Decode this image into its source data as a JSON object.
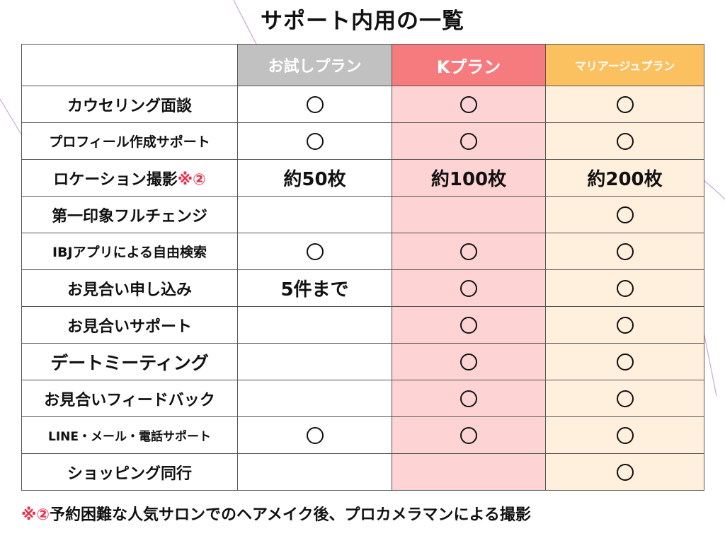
{
  "title": "サポート内用の一覧",
  "plans": [
    {
      "label": "お試しプラン"
    },
    {
      "label": "Kプラン"
    },
    {
      "label": "マリアージュプラン"
    }
  ],
  "circle": "○",
  "rows": [
    {
      "label": "カウセリング面談",
      "values": [
        "○",
        "○",
        "○"
      ]
    },
    {
      "label": "プロフィール作成サポート",
      "values": [
        "○",
        "○",
        "○"
      ]
    },
    {
      "label": "ロケーション撮影",
      "label_mark": "※②",
      "values": [
        "約50枚",
        "約100枚",
        "約200枚"
      ]
    },
    {
      "label": "第一印象フルチェンジ",
      "values": [
        "",
        "",
        "○"
      ]
    },
    {
      "label": "IBJアプリによる自由検索",
      "values": [
        "○",
        "○",
        "○"
      ]
    },
    {
      "label": "お見合い申し込み",
      "values": [
        "5件まで",
        "○",
        "○"
      ]
    },
    {
      "label": "お見合いサポート",
      "values": [
        "",
        "○",
        "○"
      ]
    },
    {
      "label": "デートミーティング",
      "values": [
        "",
        "○",
        "○"
      ]
    },
    {
      "label": "お見合いフィードバック",
      "values": [
        "",
        "○",
        "○"
      ]
    },
    {
      "label": "LINE・メール・電話サポート",
      "values": [
        "○",
        "○",
        "○"
      ]
    },
    {
      "label": "ショッピング同行",
      "values": [
        "",
        "",
        "○"
      ]
    }
  ],
  "footnote": {
    "mark": "※②",
    "text": "予約困難な人気サロンでのヘアメイク後、プロカメラマンによる撮影"
  },
  "colors": {
    "trial_header": "#c1c1c1",
    "k_header": "#f57b7e",
    "marriage_header": "#fbc160",
    "k_cell": "#fdd3d4",
    "marriage_cell": "#fff0dd",
    "mark": "#e8304a"
  }
}
